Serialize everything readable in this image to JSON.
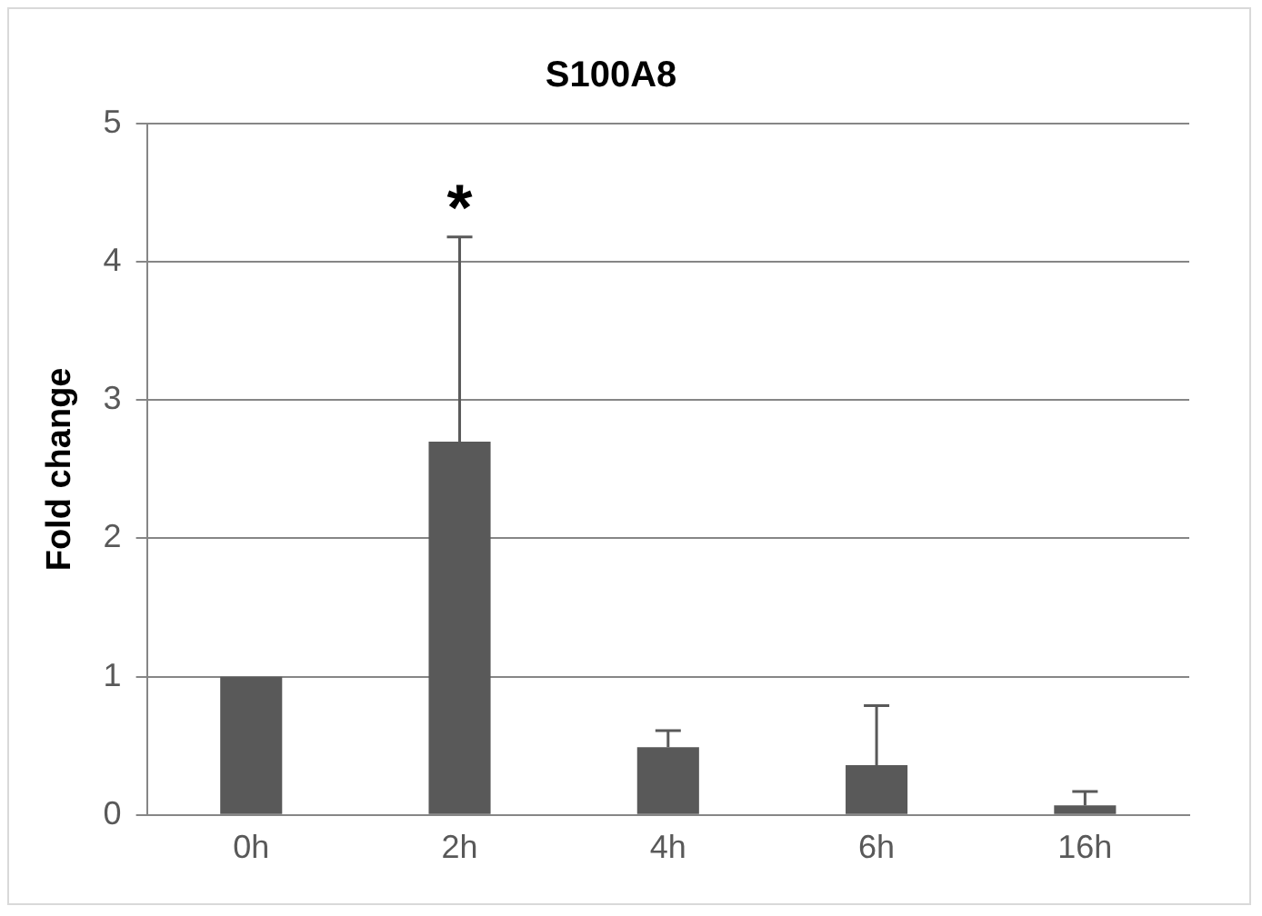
{
  "chart_data": {
    "type": "bar",
    "title": "S100A8",
    "ylabel": "Fold change",
    "categories": [
      "0h",
      "2h",
      "4h",
      "6h",
      "16h"
    ],
    "values": [
      1,
      2.7,
      0.49,
      0.36,
      0.07
    ],
    "errors": [
      null,
      [
        2.7,
        4.18
      ],
      [
        0.49,
        0.61
      ],
      [
        0.36,
        0.79
      ],
      [
        0.07,
        0.17
      ]
    ],
    "color": "#595959",
    "ylim": [
      0,
      5
    ],
    "yticks": [
      0,
      1,
      2,
      3,
      4,
      5
    ],
    "grid": "y",
    "annotations": [
      "*"
    ]
  }
}
